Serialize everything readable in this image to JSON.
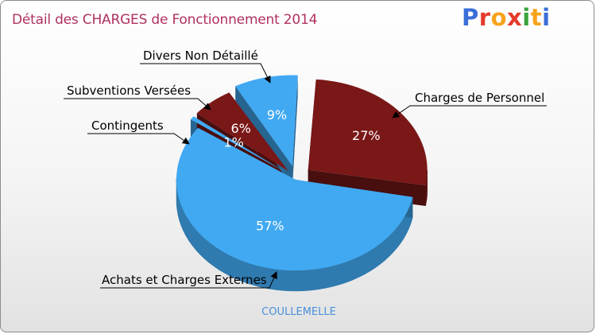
{
  "header": {
    "title": "Détail des CHARGES de Fonctionnement 2014",
    "logo_text": "Proxiti",
    "logo_colors": [
      "#3a6fd8",
      "#e53b2c",
      "#f7a21b",
      "#e53b2c",
      "#3aa33a",
      "#f7a21b",
      "#3a6fd8"
    ]
  },
  "footer": {
    "town": "COULLEMELLE"
  },
  "chart_data": {
    "type": "pie",
    "title": "Détail des CHARGES de Fonctionnement 2014",
    "slices": [
      {
        "label": "Charges de Personnel",
        "value": 27,
        "display": "27%",
        "color": "#7a1717",
        "exploded": true
      },
      {
        "label": "Achats et Charges Externes",
        "value": 57,
        "display": "57%",
        "color": "#41a9f2",
        "exploded": false
      },
      {
        "label": "Contingents",
        "value": 1,
        "display": "1%",
        "color": "#41a9f2",
        "exploded": true
      },
      {
        "label": "Subventions Versées",
        "value": 6,
        "display": "6%",
        "color": "#7a1717",
        "exploded": true
      },
      {
        "label": "Divers Non Détaillé",
        "value": 9,
        "display": "9%",
        "color": "#41a9f2",
        "exploded": true
      }
    ]
  }
}
